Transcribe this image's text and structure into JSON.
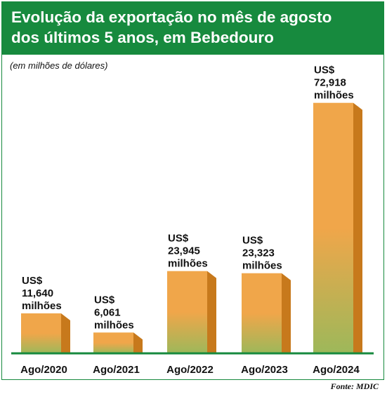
{
  "header": {
    "title_line1": "Evolução da exportação no mês de agosto",
    "title_line2": "dos últimos 5 anos, em Bebedouro"
  },
  "colors": {
    "header": "#178a3e",
    "bar_top": "#f0a64a",
    "bar_bottom": "#9db85a",
    "bar_side": "#c7791c",
    "baseline": "#178a3e"
  },
  "chart_data": {
    "type": "bar",
    "title": "Evolução da exportação no mês de agosto dos últimos 5 anos, em Bebedouro",
    "subtitle": "(em milhões de dólares)",
    "categories": [
      "Ago/2020",
      "Ago/2021",
      "Ago/2022",
      "Ago/2023",
      "Ago/2024"
    ],
    "values": [
      11.64,
      6.061,
      23.945,
      23.323,
      72.918
    ],
    "value_labels": [
      [
        "US$",
        "11,640",
        "milhões"
      ],
      [
        "US$",
        "6,061",
        "milhões"
      ],
      [
        "US$",
        "23,945",
        "milhões"
      ],
      [
        "US$",
        "23,323",
        "milhões"
      ],
      [
        "US$",
        "72,918",
        "milhões"
      ]
    ],
    "ylim": [
      0,
      80
    ],
    "grid": false,
    "legend": "none",
    "source": "Fonte: MDIC"
  }
}
